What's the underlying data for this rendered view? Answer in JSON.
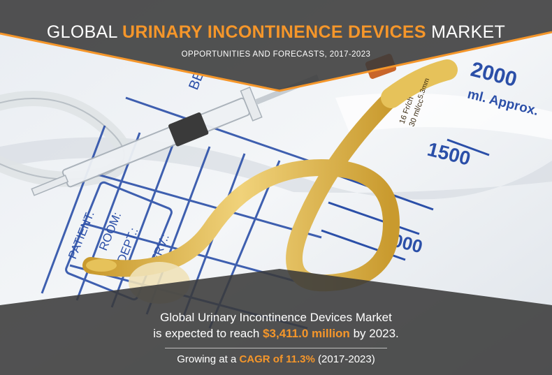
{
  "header": {
    "title_prefix": "GLOBAL",
    "title_highlight": "URINARY INCONTINENCE DEVICES",
    "title_suffix": "MARKET",
    "subtitle": "OPPORTUNITIES AND FORECASTS, 2017-2023"
  },
  "footer": {
    "line1": "Global Urinary Incontinence Devices Market",
    "line2_prefix": "is expected to reach",
    "line2_value": "$3,411.0 million",
    "line2_suffix": "by 2023.",
    "growth_prefix": "Growing at a",
    "growth_value": "CAGR of 11.3%",
    "growth_suffix": "(2017-2023)"
  },
  "bag_labels": {
    "vol_2000": "2000",
    "unit": "ml. Approx.",
    "vol_1500": "1500",
    "vol_1000": "000",
    "patient": "PATIENT:",
    "room": "ROOM:",
    "dept": "DEPT.:",
    "serv": "SERV.:",
    "bed": "BE"
  },
  "catheter_labels": {
    "size_line1": "16 Fr/ch",
    "size_line2": "30 ml/cc",
    "balloon": "5.3mm"
  },
  "colors": {
    "accent": "#f5962a",
    "banner": "#3a3a3a",
    "print_blue": "#2b4fa8",
    "catheter": "#e6c25a"
  }
}
